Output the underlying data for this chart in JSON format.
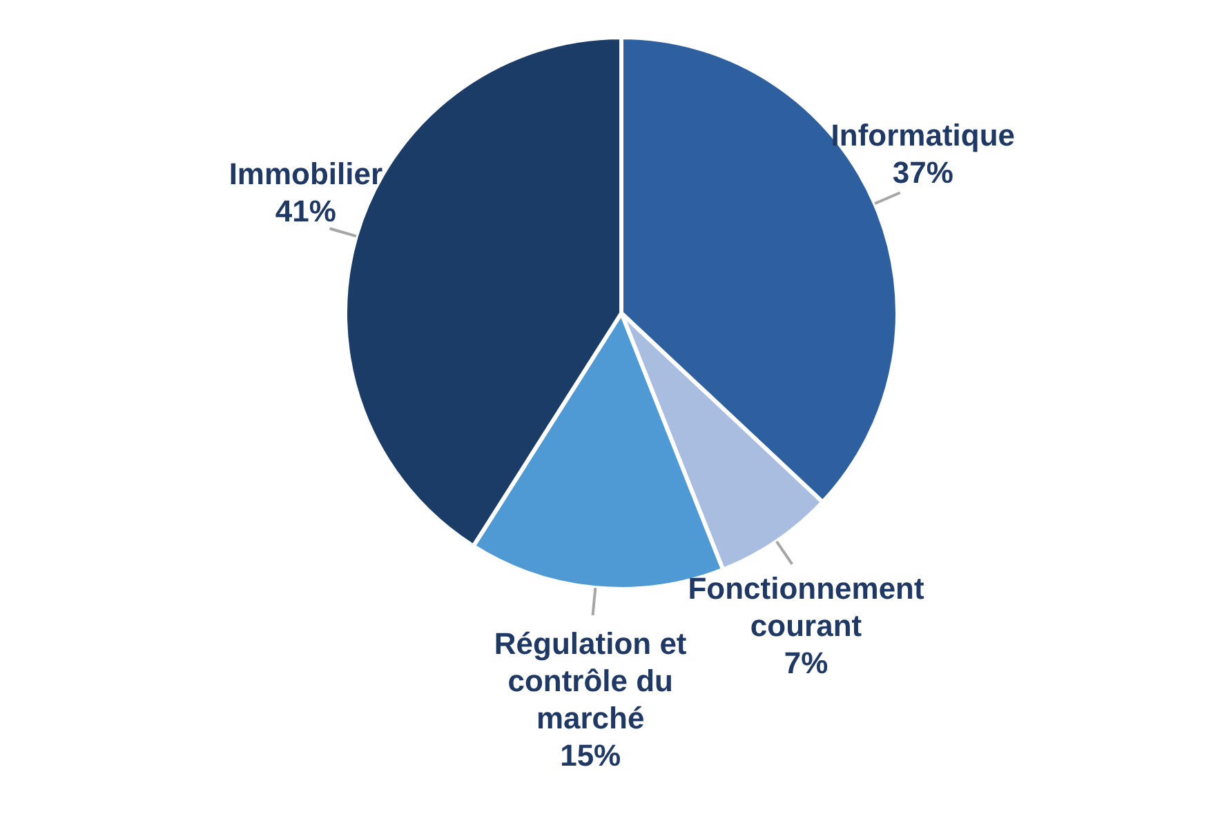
{
  "chart_data": {
    "type": "pie",
    "categories": [
      "Informatique",
      "Fonctionnement courant",
      "Régulation et contrôle du marché",
      "Immobilier"
    ],
    "values": [
      37,
      7,
      15,
      41
    ],
    "value_labels": [
      "37%",
      "7%",
      "15%",
      "41%"
    ],
    "colors": [
      "#2e5f9e",
      "#a9bde0",
      "#4f9ad4",
      "#1b3c66"
    ],
    "legend": false
  }
}
